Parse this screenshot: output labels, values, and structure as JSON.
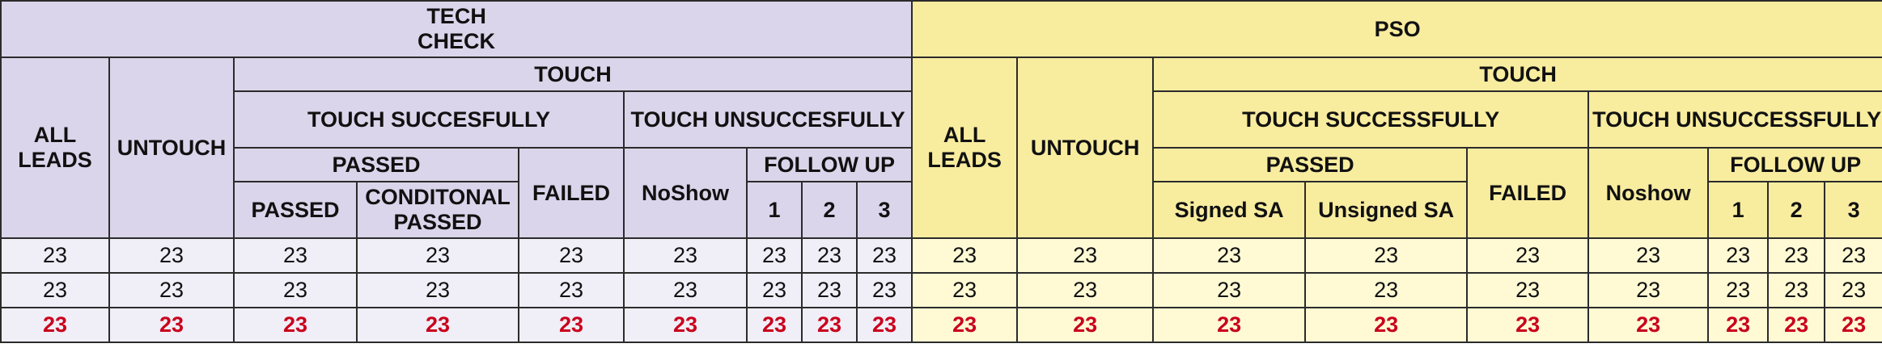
{
  "tech": {
    "title_line1": "TECH",
    "title_line2": "CHECK",
    "all_leads_line1": "ALL",
    "all_leads_line2": "LEADS",
    "untouch": "UNTOUCH",
    "touch": "TOUCH",
    "touch_success": "TOUCH SUCCESFULLY",
    "touch_unsuccess": "TOUCH UNSUCCESFULLY",
    "passed_group": "PASSED",
    "failed": "FAILED",
    "noshow": "NoShow",
    "follow_up": "FOLLOW UP",
    "passed": "PASSED",
    "conditional_line1": "CONDITONAL",
    "conditional_line2": "PASSED",
    "fu1": "1",
    "fu2": "2",
    "fu3": "3"
  },
  "pso": {
    "title": "PSO",
    "all_leads_line1": "ALL",
    "all_leads_line2": "LEADS",
    "untouch": "UNTOUCH",
    "touch": "TOUCH",
    "touch_success": "TOUCH SUCCESSFULLY",
    "touch_unsuccess": "TOUCH UNSUCCESSFULLY",
    "passed_group": "PASSED",
    "failed": "FAILED",
    "noshow": "Noshow",
    "follow_up": "FOLLOW UP",
    "signed_sa": "Signed SA",
    "unsigned_sa": "Unsigned SA",
    "fu1": "1",
    "fu2": "2",
    "fu3": "3"
  },
  "rows": [
    {
      "tech": [
        "23",
        "23",
        "23",
        "23",
        "23",
        "23",
        "23",
        "23",
        "23"
      ],
      "pso": [
        "23",
        "23",
        "23",
        "23",
        "23",
        "23",
        "23",
        "23",
        "23"
      ]
    },
    {
      "tech": [
        "23",
        "23",
        "23",
        "23",
        "23",
        "23",
        "23",
        "23",
        "23"
      ],
      "pso": [
        "23",
        "23",
        "23",
        "23",
        "23",
        "23",
        "23",
        "23",
        "23"
      ]
    },
    {
      "tech": [
        "23",
        "23",
        "23",
        "23",
        "23",
        "23",
        "23",
        "23",
        "23"
      ],
      "pso": [
        "23",
        "23",
        "23",
        "23",
        "23",
        "23",
        "23",
        "23",
        "23"
      ]
    }
  ],
  "colors": {
    "tech_header": "#dad5ea",
    "tech_data": "#f0eef7",
    "pso_header": "#f8ec9f",
    "pso_data": "#fffad4",
    "total_text": "#c9001c"
  }
}
